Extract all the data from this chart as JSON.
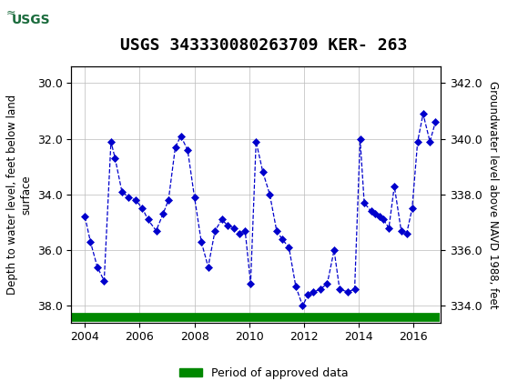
{
  "title": "USGS 343330080263709 KER- 263",
  "ylabel_left": "Depth to water level, feet below land\nsurface",
  "ylabel_right": "Groundwater level above NAVD 1988, feet",
  "ylim_left": [
    38.6,
    29.4
  ],
  "ylim_right": [
    333.4,
    342.6
  ],
  "xlim": [
    2003.5,
    2017.0
  ],
  "yticks_left": [
    30.0,
    32.0,
    34.0,
    36.0,
    38.0
  ],
  "yticks_right": [
    334.0,
    336.0,
    338.0,
    340.0,
    342.0
  ],
  "xticks": [
    2004,
    2006,
    2008,
    2010,
    2012,
    2014,
    2016
  ],
  "header_color": "#1a6b3c",
  "line_color": "#0000cc",
  "marker_color": "#0000cc",
  "approved_color": "#008800",
  "background_color": "#ffffff",
  "grid_color": "#bbbbbb",
  "title_fontsize": 13,
  "label_fontsize": 8.5,
  "tick_fontsize": 9,
  "data_x": [
    2004.0,
    2004.2,
    2004.45,
    2004.7,
    2004.95,
    2005.1,
    2005.35,
    2005.6,
    2005.85,
    2006.1,
    2006.3,
    2006.6,
    2006.85,
    2007.05,
    2007.3,
    2007.5,
    2007.75,
    2008.0,
    2008.25,
    2008.5,
    2008.75,
    2009.0,
    2009.2,
    2009.45,
    2009.65,
    2009.85,
    2010.05,
    2010.25,
    2010.5,
    2010.75,
    2011.0,
    2011.2,
    2011.45,
    2011.7,
    2011.95,
    2012.15,
    2012.35,
    2012.6,
    2012.85,
    2013.1,
    2013.3,
    2013.6,
    2013.85,
    2014.05,
    2014.2,
    2014.45,
    2014.6,
    2014.75,
    2014.9,
    2015.1,
    2015.3,
    2015.55,
    2015.75,
    2015.95,
    2016.15,
    2016.35,
    2016.6,
    2016.8
  ],
  "data_y": [
    34.8,
    35.7,
    36.6,
    37.1,
    32.1,
    32.7,
    33.9,
    34.1,
    34.2,
    34.5,
    34.9,
    35.3,
    34.7,
    34.2,
    32.3,
    31.9,
    32.4,
    34.1,
    35.7,
    36.6,
    35.3,
    34.9,
    35.1,
    35.2,
    35.4,
    35.3,
    37.2,
    32.1,
    33.2,
    34.0,
    35.3,
    35.6,
    35.9,
    37.3,
    38.0,
    37.6,
    37.5,
    37.4,
    37.2,
    36.0,
    37.4,
    37.5,
    37.4,
    32.0,
    34.3,
    34.6,
    34.7,
    34.8,
    34.9,
    35.2,
    33.7,
    35.3,
    35.4,
    34.5,
    32.1,
    31.1,
    32.1,
    31.4
  ],
  "approved_x_start": 2003.5,
  "approved_x_end": 2016.95,
  "approved_y": 38.42,
  "legend_label": "Period of approved data"
}
